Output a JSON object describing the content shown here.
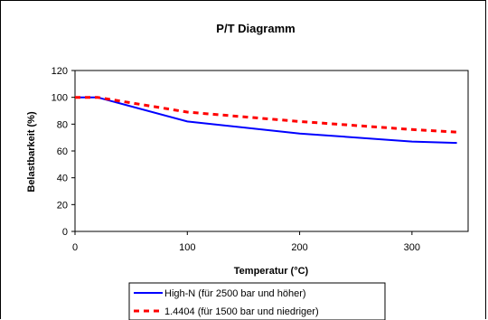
{
  "chart_data": {
    "type": "line",
    "title": "P/T Diagramm",
    "xlabel": "Temperatur (°C)",
    "ylabel": "Belastbarkeit (%)",
    "xlim": [
      0,
      350
    ],
    "ylim": [
      0,
      120
    ],
    "xticks": [
      0,
      100,
      200,
      300
    ],
    "yticks": [
      0,
      20,
      40,
      60,
      80,
      100,
      120
    ],
    "grid": false,
    "legend_position": "bottom",
    "series": [
      {
        "name": "High-N (für 2500 bar und höher)",
        "color": "#0000ff",
        "style": "solid",
        "x": [
          0,
          20,
          100,
          200,
          300,
          340
        ],
        "y": [
          100,
          100,
          82,
          73,
          67,
          66
        ]
      },
      {
        "name": "1.4404 (für 1500 bar und niedriger)",
        "color": "#ff0000",
        "style": "dashed",
        "x": [
          0,
          20,
          100,
          200,
          300,
          340
        ],
        "y": [
          100,
          100,
          89,
          82,
          76,
          74
        ]
      }
    ]
  }
}
